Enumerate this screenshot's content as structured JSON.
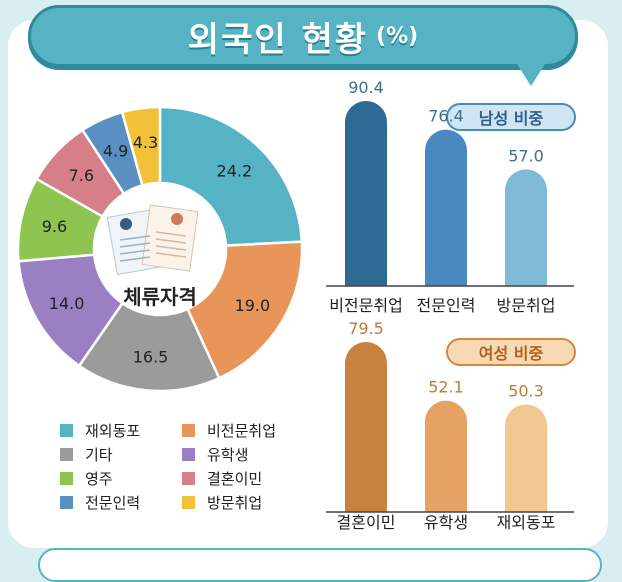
{
  "title": {
    "text": "외국인 현황",
    "unit": "(%)"
  },
  "chart_data": [
    {
      "type": "pie",
      "title": "",
      "center_label": "체류자격",
      "slices": [
        {
          "label": "재외동포",
          "value": 24.2,
          "color": "#56b3c3"
        },
        {
          "label": "비전문취업",
          "value": 19.0,
          "color": "#e8955a"
        },
        {
          "label": "기타",
          "value": 16.5,
          "color": "#9b9b9b"
        },
        {
          "label": "유학생",
          "value": 14.0,
          "color": "#9a80c2"
        },
        {
          "label": "영주",
          "value": 9.6,
          "color": "#8ec44f"
        },
        {
          "label": "결혼이민",
          "value": 7.6,
          "color": "#d57f89"
        },
        {
          "label": "전문인력",
          "value": 4.9,
          "color": "#5a8fc2"
        },
        {
          "label": "방문취업",
          "value": 4.3,
          "color": "#f2c13a"
        }
      ],
      "legend": [
        {
          "label": "재외동포",
          "color": "#56b3c3"
        },
        {
          "label": "비전문취업",
          "color": "#e8955a"
        },
        {
          "label": "기타",
          "color": "#9b9b9b"
        },
        {
          "label": "유학생",
          "color": "#9a80c2"
        },
        {
          "label": "영주",
          "color": "#8ec44f"
        },
        {
          "label": "결혼이민",
          "color": "#d57f89"
        },
        {
          "label": "전문인력",
          "color": "#5a8fc2"
        },
        {
          "label": "방문취업",
          "color": "#f2c13a"
        }
      ]
    },
    {
      "type": "bar",
      "title": "남성 비중",
      "categories": [
        "비전문취업",
        "전문인력",
        "방문취업"
      ],
      "values": [
        90.4,
        76.4,
        57.0
      ],
      "labels": [
        "90.4",
        "76.4",
        "57.0"
      ],
      "colors": [
        "#2f6a95",
        "#4a89bd",
        "#7fbad6"
      ]
    },
    {
      "type": "bar",
      "title": "여성 비중",
      "categories": [
        "결혼이민",
        "유학생",
        "재외동포"
      ],
      "values": [
        79.5,
        52.1,
        50.3
      ],
      "labels": [
        "79.5",
        "52.1",
        "50.3"
      ],
      "colors": [
        "#c9813f",
        "#e5a264",
        "#f1c88f"
      ]
    }
  ]
}
